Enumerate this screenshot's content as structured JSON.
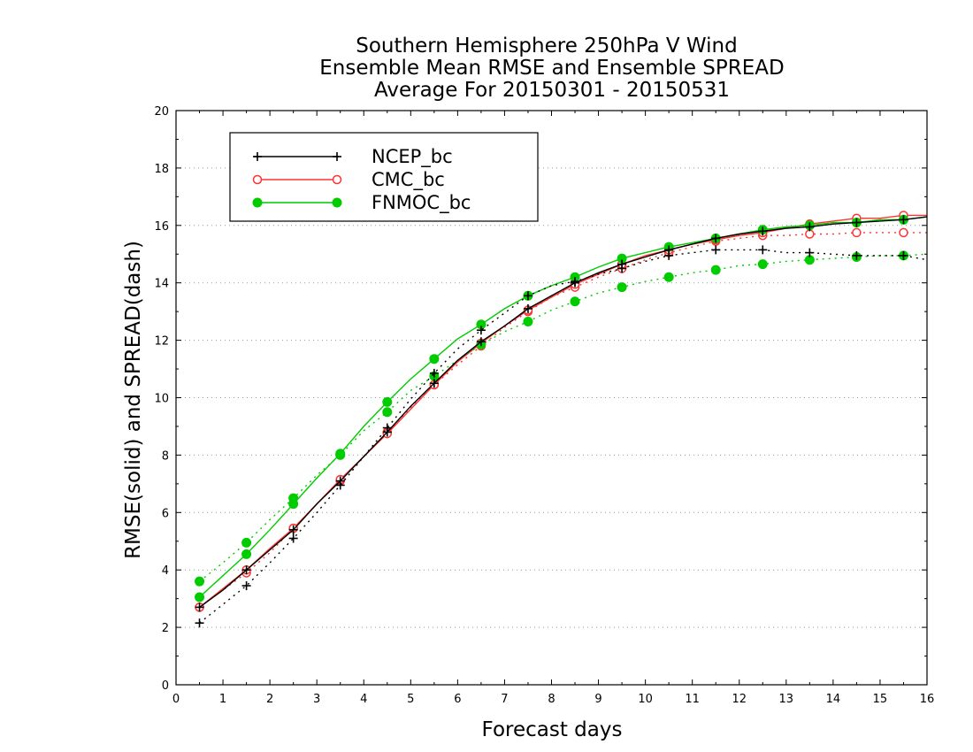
{
  "chart_data": {
    "type": "line",
    "title_lines": [
      "Southern Hemisphere 250hPa V Wind",
      "Ensemble Mean RMSE and Ensemble SPREAD",
      "Average For 20150301 - 20150531"
    ],
    "xlabel": "Forecast days",
    "ylabel": "RMSE(solid) and SPREAD(dash)",
    "xlim": [
      0,
      16
    ],
    "ylim": [
      0,
      20
    ],
    "x_ticks": [
      0,
      1,
      2,
      3,
      4,
      5,
      6,
      7,
      8,
      9,
      10,
      11,
      12,
      13,
      14,
      15,
      16
    ],
    "y_ticks": [
      0,
      2,
      4,
      6,
      8,
      10,
      12,
      14,
      16,
      18,
      20
    ],
    "grid": "horizontal dotted",
    "legend_position": "top-left",
    "x": [
      0.5,
      1,
      1.5,
      2,
      2.5,
      3,
      3.5,
      4,
      4.5,
      5,
      5.5,
      6,
      6.5,
      7,
      7.5,
      8,
      8.5,
      9,
      9.5,
      10,
      10.5,
      11,
      11.5,
      12,
      12.5,
      13,
      13.5,
      14,
      14.5,
      15,
      15.5,
      16
    ],
    "series": [
      {
        "name": "NCEP_bc",
        "color": "#000000",
        "marker": "plus",
        "rmse": [
          2.7,
          3.3,
          4.0,
          4.7,
          5.4,
          6.3,
          7.1,
          7.95,
          8.8,
          9.7,
          10.5,
          11.3,
          11.95,
          12.5,
          13.1,
          13.55,
          14.0,
          14.35,
          14.65,
          14.9,
          15.15,
          15.35,
          15.55,
          15.7,
          15.8,
          15.9,
          15.95,
          16.05,
          16.1,
          16.15,
          16.2,
          16.3
        ],
        "spread": [
          2.15,
          2.8,
          3.45,
          4.25,
          5.1,
          6.0,
          6.95,
          7.95,
          8.95,
          9.95,
          10.85,
          11.7,
          12.35,
          12.95,
          13.55,
          13.9,
          14.05,
          14.3,
          14.5,
          14.75,
          14.95,
          15.05,
          15.15,
          15.15,
          15.15,
          15.05,
          15.05,
          15.0,
          14.95,
          14.95,
          14.95,
          14.8
        ]
      },
      {
        "name": "CMC_bc",
        "color": "#ff3333",
        "marker": "open-circle",
        "rmse": [
          2.7,
          3.35,
          4.0,
          4.75,
          5.45,
          6.3,
          7.15,
          7.95,
          8.75,
          9.6,
          10.45,
          11.25,
          11.9,
          12.5,
          13.05,
          13.5,
          13.95,
          14.3,
          14.65,
          14.95,
          15.15,
          15.35,
          15.5,
          15.65,
          15.75,
          15.9,
          16.05,
          16.15,
          16.25,
          16.25,
          16.35,
          16.35
        ],
        "spread": [
          2.7,
          3.3,
          3.9,
          4.6,
          5.45,
          6.3,
          7.1,
          7.95,
          8.8,
          9.65,
          10.45,
          11.15,
          11.8,
          12.45,
          13.0,
          13.5,
          13.85,
          14.2,
          14.5,
          14.8,
          15.05,
          15.25,
          15.45,
          15.55,
          15.65,
          15.65,
          15.7,
          15.7,
          15.75,
          15.75,
          15.75,
          15.75
        ]
      },
      {
        "name": "FNMOC_bc",
        "color": "#00cc00",
        "marker": "filled-circle",
        "rmse": [
          3.05,
          3.8,
          4.55,
          5.4,
          6.3,
          7.2,
          8.05,
          9.0,
          9.85,
          10.65,
          11.35,
          12.05,
          12.55,
          13.1,
          13.55,
          13.9,
          14.2,
          14.55,
          14.85,
          15.05,
          15.25,
          15.4,
          15.55,
          15.7,
          15.85,
          15.95,
          16.0,
          16.1,
          16.1,
          16.2,
          16.2,
          16.3
        ],
        "spread": [
          3.6,
          4.25,
          4.95,
          5.75,
          6.5,
          7.3,
          8.0,
          8.85,
          9.5,
          10.25,
          10.75,
          11.3,
          11.85,
          12.3,
          12.65,
          13.05,
          13.35,
          13.65,
          13.85,
          14.05,
          14.2,
          14.35,
          14.45,
          14.6,
          14.65,
          14.75,
          14.8,
          14.85,
          14.9,
          14.95,
          14.95,
          15.0
        ]
      }
    ]
  }
}
